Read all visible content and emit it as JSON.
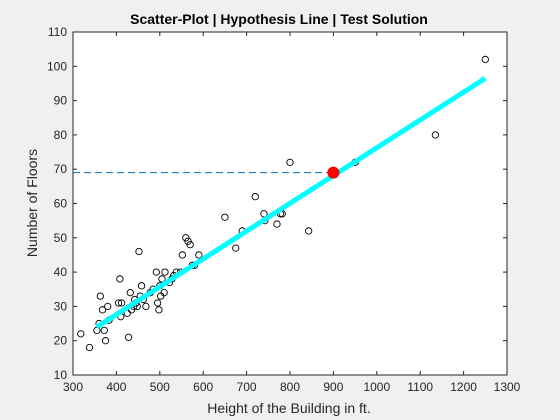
{
  "figure": {
    "background": "#f0f0f0",
    "axes_background": "#ffffff",
    "axis_color": "#262626"
  },
  "chart_data": {
    "type": "scatter",
    "title": "Scatter-Plot | Hypothesis Line | Test Solution",
    "xlabel": "Height of the Building in ft.",
    "ylabel": "Number of Floors",
    "xlim": [
      300,
      1300
    ],
    "ylim": [
      10,
      110
    ],
    "xticks": [
      300,
      400,
      500,
      600,
      700,
      800,
      900,
      1000,
      1100,
      1200,
      1300
    ],
    "yticks": [
      10,
      20,
      30,
      40,
      50,
      60,
      70,
      80,
      90,
      100,
      110
    ],
    "grid": false,
    "legend": "none",
    "series": [
      {
        "kind": "markers",
        "marker": "open-circle",
        "color": "#000000",
        "points": [
          [
            318,
            22
          ],
          [
            338,
            18
          ],
          [
            355,
            23
          ],
          [
            360,
            25
          ],
          [
            363,
            33
          ],
          [
            368,
            29
          ],
          [
            372,
            23
          ],
          [
            375,
            20
          ],
          [
            380,
            30
          ],
          [
            383,
            26
          ],
          [
            405,
            31
          ],
          [
            408,
            38
          ],
          [
            410,
            27
          ],
          [
            412,
            31
          ],
          [
            425,
            28
          ],
          [
            428,
            21
          ],
          [
            432,
            34
          ],
          [
            435,
            29
          ],
          [
            440,
            30
          ],
          [
            442,
            32
          ],
          [
            445,
            31
          ],
          [
            448,
            30
          ],
          [
            452,
            46
          ],
          [
            455,
            33
          ],
          [
            458,
            36
          ],
          [
            462,
            32
          ],
          [
            468,
            30
          ],
          [
            478,
            34
          ],
          [
            485,
            35
          ],
          [
            492,
            40
          ],
          [
            495,
            31
          ],
          [
            498,
            29
          ],
          [
            500,
            36
          ],
          [
            502,
            33
          ],
          [
            505,
            38
          ],
          [
            510,
            34
          ],
          [
            512,
            40
          ],
          [
            522,
            37
          ],
          [
            528,
            38
          ],
          [
            532,
            39
          ],
          [
            538,
            40
          ],
          [
            548,
            40
          ],
          [
            552,
            45
          ],
          [
            560,
            50
          ],
          [
            565,
            49
          ],
          [
            570,
            48
          ],
          [
            575,
            42
          ],
          [
            580,
            42
          ],
          [
            590,
            45
          ],
          [
            650,
            56
          ],
          [
            675,
            47
          ],
          [
            690,
            52
          ],
          [
            720,
            62
          ],
          [
            740,
            57
          ],
          [
            742,
            55
          ],
          [
            770,
            54
          ],
          [
            778,
            57
          ],
          [
            782,
            57
          ],
          [
            800,
            72
          ],
          [
            843,
            52
          ],
          [
            950,
            72
          ],
          [
            1135,
            80
          ],
          [
            1250,
            102
          ]
        ]
      },
      {
        "kind": "line",
        "name": "",
        "color": "#00ffff",
        "line_width": "thick",
        "points": [
          [
            355,
            24
          ],
          [
            1250,
            96.5
          ]
        ]
      },
      {
        "kind": "dashed-line",
        "color": "#0072bd",
        "points": [
          [
            300,
            69
          ],
          [
            900,
            69
          ]
        ]
      },
      {
        "kind": "filled-marker",
        "marker": "filled-circle",
        "color": "#ff0000",
        "points": [
          [
            900,
            69
          ]
        ]
      }
    ]
  }
}
